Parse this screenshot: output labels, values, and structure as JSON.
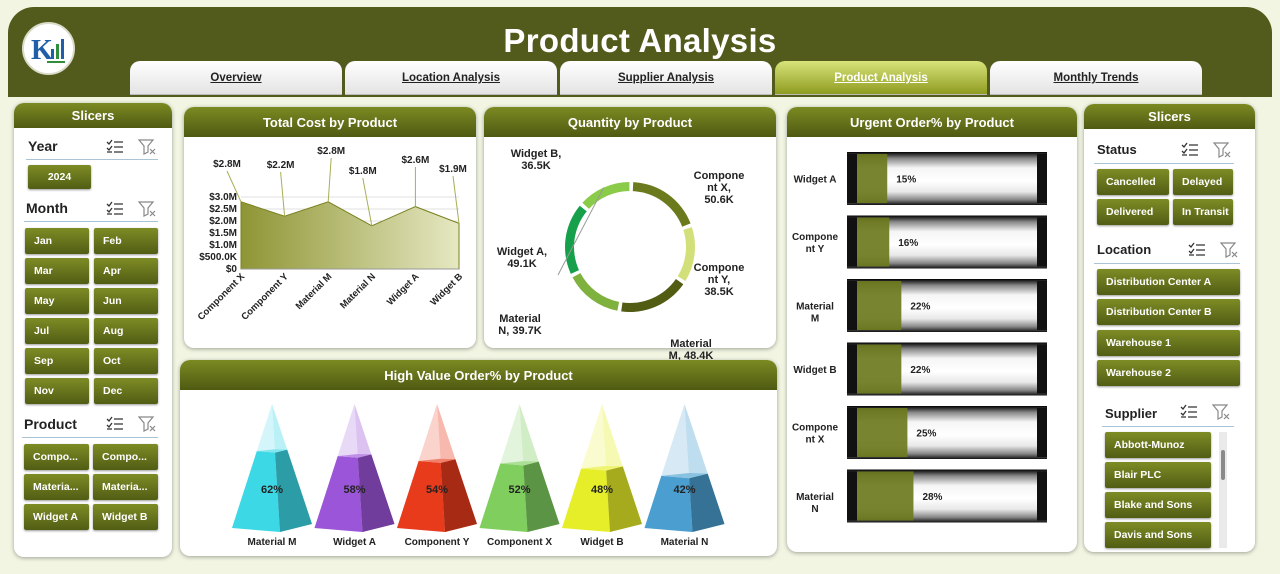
{
  "header": {
    "title": "Product Analysis",
    "tabs": [
      "Overview",
      "Location Analysis",
      "Supplier Analysis",
      "Product Analysis",
      "Monthly Trends"
    ],
    "active_tab": "Product Analysis"
  },
  "left_slicers": {
    "title": "Slicers",
    "year": {
      "label": "Year",
      "items": [
        "2024"
      ]
    },
    "month": {
      "label": "Month",
      "items": [
        "Jan",
        "Feb",
        "Mar",
        "Apr",
        "May",
        "Jun",
        "Jul",
        "Aug",
        "Sep",
        "Oct",
        "Nov",
        "Dec"
      ]
    },
    "product": {
      "label": "Product",
      "items": [
        "Compo...",
        "Compo...",
        "Materia...",
        "Materia...",
        "Widget A",
        "Widget B"
      ]
    }
  },
  "right_slicers": {
    "title": "Slicers",
    "status": {
      "label": "Status",
      "items": [
        "Cancelled",
        "Delayed",
        "Delivered",
        "In Transit"
      ]
    },
    "location": {
      "label": "Location",
      "items": [
        "Distribution Center A",
        "Distribution Center B",
        "Warehouse 1",
        "Warehouse 2"
      ]
    },
    "supplier": {
      "label": "Supplier",
      "items": [
        "Abbott-Munoz",
        "Blair PLC",
        "Blake and Sons",
        "Davis and Sons"
      ]
    }
  },
  "colors": {
    "accent": "#5f6b18",
    "header": "#525a1c",
    "area_fill": "#a7ad4d",
    "bar_fill": "#6d7a1d"
  },
  "chart_data": [
    {
      "id": "total_cost",
      "type": "area",
      "title": "Total Cost by Product",
      "categories": [
        "Component X",
        "Component Y",
        "Material M",
        "Material N",
        "Widget A",
        "Widget B"
      ],
      "values": [
        2.8,
        2.2,
        2.8,
        1.8,
        2.6,
        1.9
      ],
      "data_labels": [
        "$2.8M",
        "$2.2M",
        "$2.8M",
        "$1.8M",
        "$2.6M",
        "$1.9M"
      ],
      "y_ticks": [
        "$0",
        "$500.0K",
        "$1.0M",
        "$1.5M",
        "$2.0M",
        "$2.5M",
        "$3.0M"
      ],
      "ylim": [
        0,
        3.0
      ],
      "grid": true
    },
    {
      "id": "quantity",
      "type": "pie",
      "title": "Quantity by Product",
      "categories": [
        "Component X",
        "Component Y",
        "Material M",
        "Material N",
        "Widget A",
        "Widget B"
      ],
      "values": [
        50.6,
        38.5,
        48.4,
        39.7,
        49.1,
        36.5
      ],
      "labels": [
        "Compone nt X, 50.6K",
        "Compone nt Y, 38.5K",
        "Material M, 48.4K",
        "Material N, 39.7K",
        "Widget A, 49.1K",
        "Widget B, 36.5K"
      ],
      "colors": [
        "#6b7a1c",
        "#d3e07a",
        "#525c13",
        "#7fb13e",
        "#16a04c",
        "#8acb4a"
      ]
    },
    {
      "id": "urgent",
      "type": "bar",
      "title": "Urgent Order% by Product",
      "categories": [
        "Widget A",
        "Compone nt Y",
        "Material M",
        "Widget B",
        "Compone nt X",
        "Material N"
      ],
      "values": [
        15,
        16,
        22,
        22,
        25,
        28
      ],
      "data_labels": [
        "15%",
        "16%",
        "22%",
        "22%",
        "25%",
        "28%"
      ]
    },
    {
      "id": "high_value",
      "type": "bar",
      "title": "High Value Order% by Product",
      "categories": [
        "Material M",
        "Widget A",
        "Component Y",
        "Component X",
        "Widget B",
        "Material N"
      ],
      "values": [
        62,
        58,
        54,
        52,
        48,
        42
      ],
      "data_labels": [
        "62%",
        "58%",
        "54%",
        "52%",
        "48%",
        "42%"
      ],
      "colors": [
        "#3dd8e6",
        "#9b55d8",
        "#e83b1c",
        "#7fce5e",
        "#e6ee2a",
        "#4a9fd0"
      ]
    }
  ]
}
